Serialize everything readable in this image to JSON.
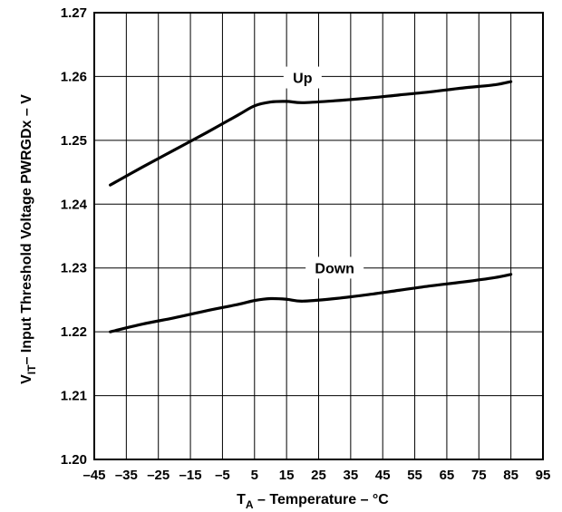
{
  "chart_data": {
    "type": "line",
    "title": "",
    "xlabel": {
      "main": "T",
      "sub": "A",
      "rest": " – Temperature – °C"
    },
    "ylabel": {
      "main": "V",
      "sub": "IT",
      "rest": "– Input Threshold Voltage PWRGDx – V"
    },
    "xlim": [
      -45,
      95
    ],
    "ylim": [
      1.2,
      1.27
    ],
    "xticks": [
      -45,
      -35,
      -25,
      -15,
      -5,
      5,
      15,
      25,
      35,
      45,
      55,
      65,
      75,
      85,
      95
    ],
    "xtick_labels": [
      "–45",
      "–35",
      "–25",
      "–15",
      "–5",
      "5",
      "15",
      "25",
      "35",
      "45",
      "55",
      "65",
      "75",
      "85",
      "95"
    ],
    "yticks": [
      1.2,
      1.21,
      1.22,
      1.23,
      1.24,
      1.25,
      1.26,
      1.27
    ],
    "ytick_labels": [
      "1.20",
      "1.21",
      "1.22",
      "1.23",
      "1.24",
      "1.25",
      "1.26",
      "1.27"
    ],
    "grid": true,
    "series": [
      {
        "name": "Up",
        "x": [
          -40,
          -30,
          -20,
          -10,
          0,
          5,
          10,
          15,
          20,
          30,
          40,
          50,
          60,
          70,
          80,
          85
        ],
        "y": [
          1.243,
          1.2458,
          1.2485,
          1.2512,
          1.254,
          1.2554,
          1.256,
          1.2561,
          1.2559,
          1.2562,
          1.2566,
          1.2571,
          1.2576,
          1.2582,
          1.2587,
          1.2592
        ]
      },
      {
        "name": "Down",
        "x": [
          -40,
          -30,
          -20,
          -10,
          0,
          5,
          10,
          15,
          20,
          30,
          40,
          50,
          60,
          70,
          80,
          85
        ],
        "y": [
          1.22,
          1.2212,
          1.2222,
          1.2233,
          1.2243,
          1.2249,
          1.2252,
          1.2251,
          1.2248,
          1.2252,
          1.2258,
          1.2265,
          1.2272,
          1.2278,
          1.2285,
          1.229
        ]
      }
    ],
    "series_labels": [
      {
        "text": "Up",
        "x": 20,
        "y": 1.2597
      },
      {
        "text": "Down",
        "x": 30,
        "y": 1.2299
      }
    ]
  }
}
